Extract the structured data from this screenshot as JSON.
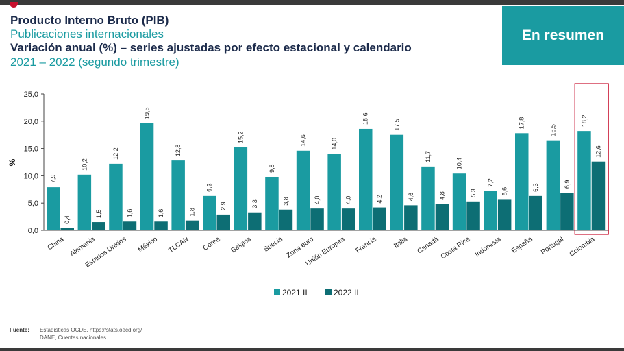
{
  "header": {
    "title": "Producto Interno Bruto (PIB)",
    "subtitle": "Publicaciones internacionales",
    "variation": "Variación anual (%) – series ajustadas por efecto estacional y calendario",
    "period": "2021 – 2022 (segundo trimestre)"
  },
  "summary_button": {
    "label": "En resumen"
  },
  "chart_data": {
    "type": "bar",
    "ylabel": "%",
    "ylim": [
      0,
      25
    ],
    "yticks": [
      "0,0",
      "5,0",
      "10,0",
      "15,0",
      "20,0",
      "25,0"
    ],
    "categories": [
      "China",
      "Alemania",
      "Estados Unidos",
      "México",
      "TLCAN",
      "Corea",
      "Bélgica",
      "Suecia",
      "Zona euro",
      "Unión Europea",
      "Francia",
      "Italia",
      "Canadá",
      "Costa Rica",
      "Indonesia",
      "España",
      "Portugal",
      "Colombia"
    ],
    "series": [
      {
        "name": "2021 II",
        "color": "#1a9ba1",
        "values": [
          7.9,
          10.2,
          12.2,
          19.6,
          12.8,
          6.3,
          15.2,
          9.8,
          14.6,
          14.0,
          18.6,
          17.5,
          11.7,
          10.4,
          7.2,
          17.8,
          16.5,
          18.2
        ],
        "labels": [
          "7,9",
          "10,2",
          "12,2",
          "19,6",
          "12,8",
          "6,3",
          "15,2",
          "9,8",
          "14,6",
          "14,0",
          "18,6",
          "17,5",
          "11,7",
          "10,4",
          "7,2",
          "17,8",
          "16,5",
          "18,2"
        ]
      },
      {
        "name": "2022 II",
        "color": "#0d6e74",
        "values": [
          0.4,
          1.5,
          1.6,
          1.6,
          1.8,
          2.9,
          3.3,
          3.8,
          4.0,
          4.0,
          4.2,
          4.6,
          4.8,
          5.3,
          5.6,
          6.3,
          6.9,
          12.6
        ],
        "labels": [
          "0,4",
          "1,5",
          "1,6",
          "1,6",
          "1,8",
          "2,9",
          "3,3",
          "3,8",
          "4,0",
          "4,0",
          "4,2",
          "4,6",
          "4,8",
          "5,3",
          "5,6",
          "6,3",
          "6,9",
          "12,6"
        ]
      }
    ],
    "highlight": {
      "category": "Colombia",
      "color": "#c8102e"
    },
    "legend_position": "bottom",
    "grid": false
  },
  "footer": {
    "label": "Fuente:",
    "line1": "Estadísticas OCDE,  https://stats.oecd.org/",
    "line2": "DANE, Cuentas nacionales"
  }
}
